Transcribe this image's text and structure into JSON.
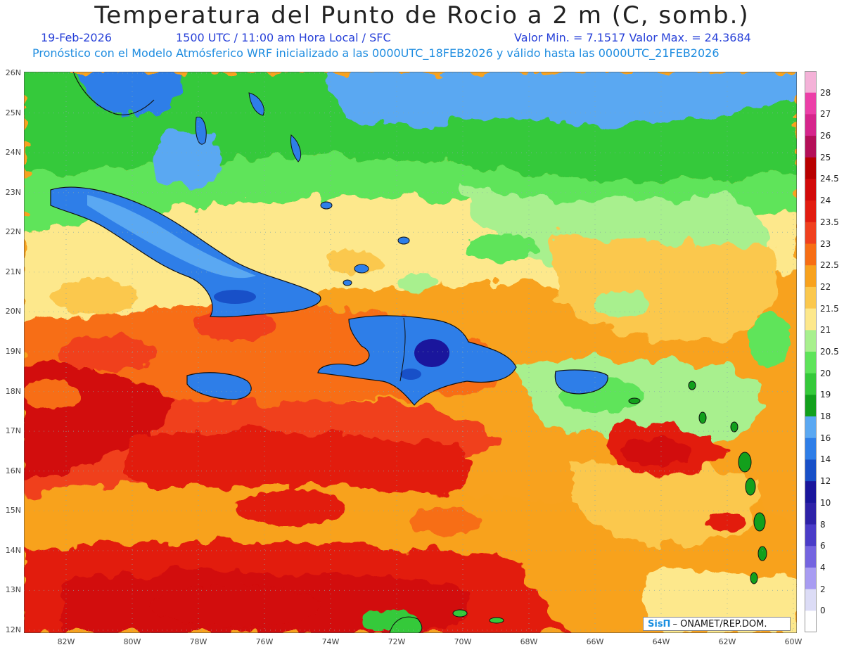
{
  "title": "Temperatura del Punto de Rocio a 2 m (C, somb.)",
  "date": "19-Feb-2026",
  "time_line": "1500 UTC / 11:00 am Hora Local / SFC",
  "minmax_line": "Valor Min. = 7.1517  Valor Max. = 24.3684",
  "model_line": "Pronóstico con el Modelo Atmósferico WRF inicializado a las 0000UTC_18FEB2026 y válido hasta las  0000UTC_21FEB2026",
  "credit": {
    "logo": "SisΠ",
    "text": "– ONAMET/REP.DOM."
  },
  "lat_labels": [
    "26N",
    "25N",
    "24N",
    "23N",
    "22N",
    "21N",
    "20N",
    "19N",
    "18N",
    "17N",
    "16N",
    "15N",
    "14N",
    "13N",
    "12N"
  ],
  "lon_labels": [
    "82W",
    "80W",
    "78W",
    "76W",
    "74W",
    "72W",
    "70W",
    "68W",
    "66W",
    "64W",
    "62W",
    "60W"
  ],
  "colorbar": [
    {
      "label": "28",
      "color": "#f4b2d8"
    },
    {
      "label": "27",
      "color": "#ec3fa8"
    },
    {
      "label": "26",
      "color": "#d6258c"
    },
    {
      "label": "25",
      "color": "#b40f58"
    },
    {
      "label": "24.5",
      "color": "#b80000"
    },
    {
      "label": "24",
      "color": "#d20a0a"
    },
    {
      "label": "23.5",
      "color": "#e21c10"
    },
    {
      "label": "23",
      "color": "#f0401e"
    },
    {
      "label": "22.5",
      "color": "#f76e14"
    },
    {
      "label": "22",
      "color": "#f8a21e"
    },
    {
      "label": "21.5",
      "color": "#fbc84e"
    },
    {
      "label": "21",
      "color": "#fde88c"
    },
    {
      "label": "20.5",
      "color": "#a8f08e"
    },
    {
      "label": "20",
      "color": "#5ee45a"
    },
    {
      "label": "19",
      "color": "#35c93a"
    },
    {
      "label": "18",
      "color": "#12a01c"
    },
    {
      "label": "16",
      "color": "#5aa8f2"
    },
    {
      "label": "14",
      "color": "#2e7ee8"
    },
    {
      "label": "12",
      "color": "#1850c8"
    },
    {
      "label": "10",
      "color": "#1a169c"
    },
    {
      "label": "8",
      "color": "#2e22a8"
    },
    {
      "label": "6",
      "color": "#4a3cc8"
    },
    {
      "label": "4",
      "color": "#7464e0"
    },
    {
      "label": "2",
      "color": "#a89cf2"
    },
    {
      "label": "0",
      "color": "#dcdcf6"
    },
    {
      "label": "",
      "color": "#ffffff"
    }
  ]
}
